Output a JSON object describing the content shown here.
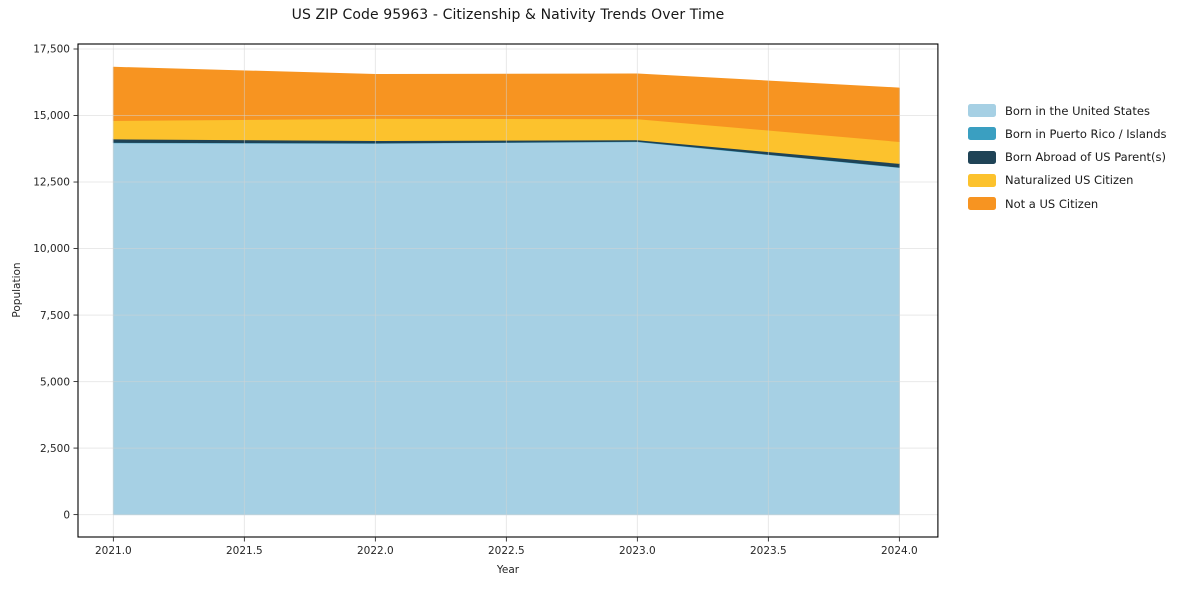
{
  "page": {
    "background": "#ffffff"
  },
  "chart_data": {
    "type": "area",
    "stacked": true,
    "title": "US ZIP Code 95963 - Citizenship & Nativity Trends Over Time",
    "xlabel": "Year",
    "ylabel": "Population",
    "x": [
      2021,
      2022,
      2023,
      2024
    ],
    "series": [
      {
        "name": "Born in the United States",
        "color": "#a6d0e4",
        "values": [
          13980,
          13960,
          14020,
          13050
        ]
      },
      {
        "name": "Born in Puerto Rico / Islands",
        "color": "#3a9fc1",
        "values": [
          12,
          12,
          12,
          12
        ]
      },
      {
        "name": "Born Abroad of US Parent(s)",
        "color": "#1f4356",
        "values": [
          130,
          90,
          60,
          140
        ]
      },
      {
        "name": "Naturalized US Citizen",
        "color": "#fcc22d",
        "values": [
          690,
          830,
          790,
          820
        ]
      },
      {
        "name": "Not a US Citizen",
        "color": "#f79421",
        "values": [
          2000,
          1650,
          1680,
          2010
        ]
      }
    ],
    "x_ticks": {
      "values": [
        2021.0,
        2021.5,
        2022.0,
        2022.5,
        2023.0,
        2023.5,
        2024.0
      ],
      "labels": [
        "2021.0",
        "2021.5",
        "2022.0",
        "2022.5",
        "2023.0",
        "2023.5",
        "2024.0"
      ]
    },
    "y_ticks": {
      "values": [
        0,
        2500,
        5000,
        7500,
        10000,
        12500,
        15000,
        17500
      ],
      "labels": [
        "0",
        "2,500",
        "5,000",
        "7,500",
        "10,000",
        "12,500",
        "15,000",
        "17,500"
      ]
    },
    "xlim": [
      2020.865,
      2024.147
    ],
    "ylim": [
      -842,
      17688
    ],
    "grid": true,
    "legend_position": "right-outside",
    "colors": {
      "spine": "#000000",
      "tick": "#2b2b2b",
      "grid": "#d4d4d4",
      "background": "#ffffff"
    }
  }
}
